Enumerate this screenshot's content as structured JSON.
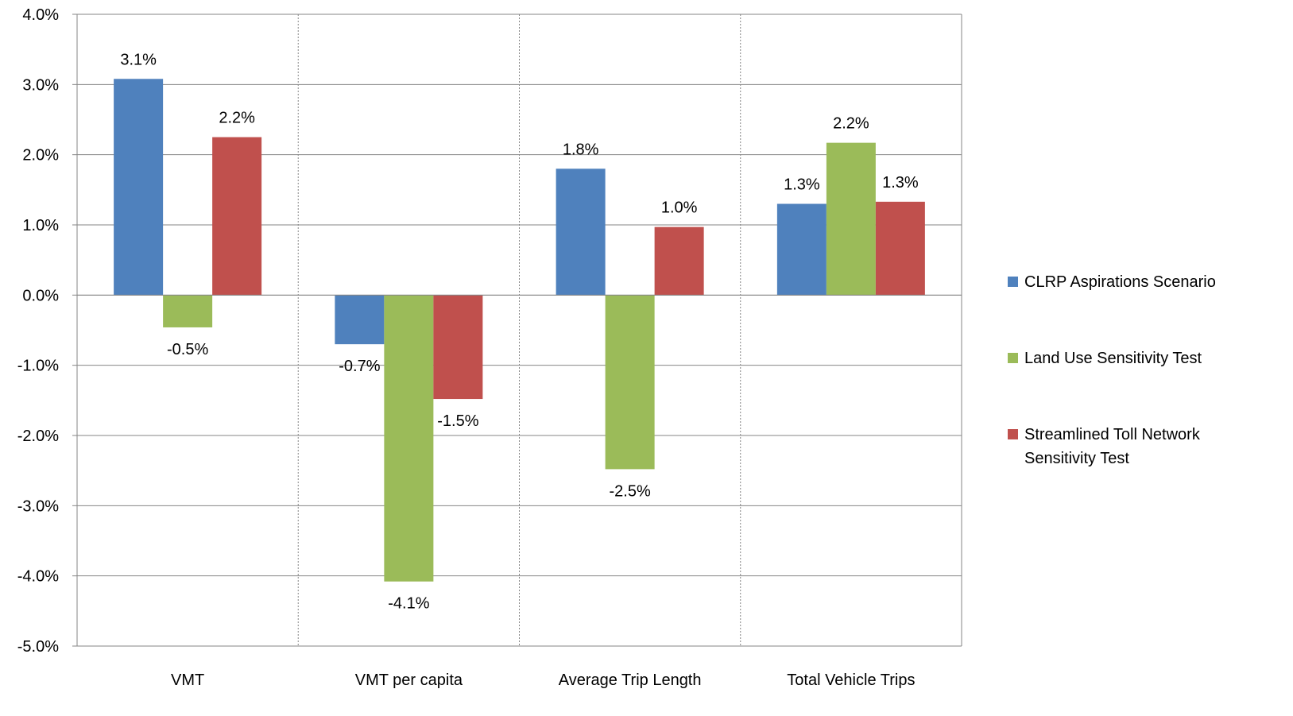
{
  "chart_data": {
    "type": "bar",
    "categories": [
      "VMT",
      "VMT per capita",
      "Average Trip Length",
      "Total Vehicle Trips"
    ],
    "series": [
      {
        "name": "CLRP Aspirations Scenario",
        "color": "#4F81BD",
        "values": [
          3.08,
          -0.7,
          1.8,
          1.3
        ],
        "labels": [
          "3.1%",
          "-0.7%",
          "1.8%",
          "1.3%"
        ]
      },
      {
        "name": "Land Use Sensitivity Test",
        "color": "#9BBB59",
        "values": [
          -0.46,
          -4.08,
          -2.48,
          2.17
        ],
        "labels": [
          "-0.5%",
          "-4.1%",
          "-2.5%",
          "2.2%"
        ]
      },
      {
        "name": "Streamlined Toll Network Sensitivity Test",
        "color": "#C0504D",
        "values": [
          2.25,
          -1.48,
          0.97,
          1.33
        ],
        "labels": [
          "2.2%",
          "-1.5%",
          "1.0%",
          "1.3%"
        ]
      }
    ],
    "legend_lines": [
      [
        "CLRP Aspirations Scenario"
      ],
      [
        "Land Use Sensitivity Test"
      ],
      [
        "Streamlined Toll Network",
        "Sensitivity Test"
      ]
    ],
    "ylim": [
      -5.0,
      4.0
    ],
    "yticks": [
      4.0,
      3.0,
      2.0,
      1.0,
      0.0,
      -1.0,
      -2.0,
      -3.0,
      -4.0,
      -5.0
    ],
    "ytick_labels": [
      "4.0%",
      "3.0%",
      "2.0%",
      "1.0%",
      "0.0%",
      "-1.0%",
      "-2.0%",
      "-3.0%",
      "-4.0%",
      "-5.0%"
    ],
    "title": "",
    "xlabel": "",
    "ylabel": "",
    "grid": "horizontal major gridlines; dotted vertical category separators",
    "legend_position": "right"
  }
}
